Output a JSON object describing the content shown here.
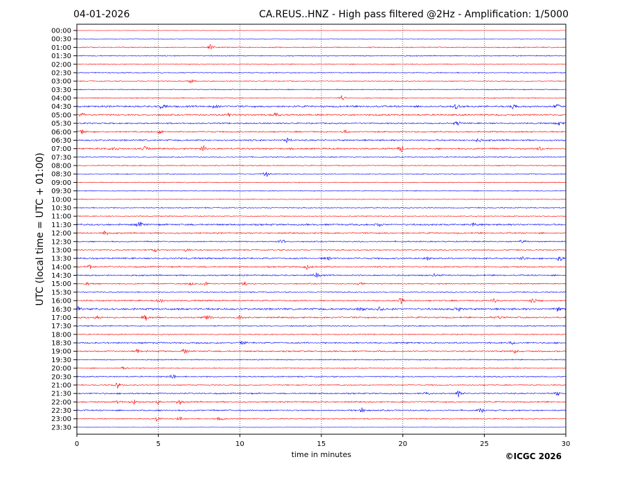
{
  "header": {
    "date": "04-01-2026",
    "title": "CA.REUS..HNZ - High pass filtered @2Hz - Amplification: 1/5000"
  },
  "copyright": "©ICGC 2026",
  "chart_data": {
    "type": "line",
    "title": "CA.REUS..HNZ - High pass filtered @2Hz - Amplification: 1/5000",
    "xlabel": "time in minutes",
    "ylabel": "UTC (local time = UTC + 01:00)",
    "xlim": [
      0,
      30
    ],
    "xticks": [
      "0",
      "5",
      "10",
      "15",
      "20",
      "25",
      "30"
    ],
    "grid": "vertical dotted at 5-minute intervals",
    "row_colors": [
      "#ff0000",
      "#0000ff"
    ],
    "rows": [
      "00:00",
      "00:30",
      "01:00",
      "01:30",
      "02:00",
      "02:30",
      "03:00",
      "03:30",
      "04:00",
      "04:30",
      "05:00",
      "05:30",
      "06:00",
      "06:30",
      "07:00",
      "07:30",
      "08:00",
      "08:30",
      "09:00",
      "09:30",
      "10:00",
      "10:30",
      "11:00",
      "11:30",
      "12:00",
      "12:30",
      "13:00",
      "13:30",
      "14:00",
      "14:30",
      "15:00",
      "15:30",
      "16:00",
      "16:30",
      "17:00",
      "17:30",
      "18:00",
      "18:30",
      "19:00",
      "19:30",
      "20:00",
      "20:30",
      "21:00",
      "21:30",
      "22:00",
      "22:30",
      "23:00",
      "23:30"
    ],
    "noise_level": [
      0.2,
      0.3,
      0.6,
      0.6,
      0.5,
      0.6,
      0.5,
      0.5,
      0.6,
      1.0,
      0.9,
      0.8,
      0.8,
      0.9,
      0.9,
      0.6,
      0.6,
      0.5,
      0.5,
      0.5,
      0.5,
      0.6,
      0.5,
      1.0,
      0.8,
      0.7,
      0.7,
      0.9,
      0.8,
      0.8,
      0.7,
      0.6,
      0.8,
      1.1,
      0.9,
      0.7,
      0.6,
      0.9,
      0.8,
      0.6,
      0.6,
      0.7,
      0.6,
      0.8,
      0.8,
      0.8,
      0.6,
      0.2
    ],
    "events": [
      [
        2,
        8.2,
        4
      ],
      [
        6,
        7.0,
        3
      ],
      [
        8,
        16.3,
        4
      ],
      [
        9,
        5.2,
        5
      ],
      [
        9,
        8.5,
        3
      ],
      [
        9,
        23.3,
        4
      ],
      [
        9,
        26.8,
        4
      ],
      [
        9,
        29.5,
        3
      ],
      [
        10,
        0.3,
        3
      ],
      [
        10,
        9.3,
        3
      ],
      [
        10,
        12.2,
        3
      ],
      [
        11,
        23.3,
        4
      ],
      [
        11,
        29.6,
        3
      ],
      [
        12,
        0.3,
        3
      ],
      [
        12,
        5.1,
        3
      ],
      [
        12,
        16.5,
        3
      ],
      [
        13,
        12.9,
        4
      ],
      [
        13,
        24.6,
        3
      ],
      [
        14,
        2.3,
        4
      ],
      [
        14,
        4.2,
        4
      ],
      [
        14,
        7.8,
        4
      ],
      [
        14,
        19.9,
        4
      ],
      [
        14,
        28.4,
        3
      ],
      [
        17,
        11.6,
        4
      ],
      [
        23,
        3.8,
        5
      ],
      [
        23,
        18.5,
        3
      ],
      [
        23,
        24.3,
        3
      ],
      [
        24,
        1.7,
        4
      ],
      [
        25,
        12.6,
        3
      ],
      [
        25,
        27.3,
        3
      ],
      [
        26,
        4.8,
        3
      ],
      [
        26,
        6.7,
        3
      ],
      [
        27,
        15.4,
        4
      ],
      [
        27,
        21.5,
        3
      ],
      [
        27,
        27.3,
        4
      ],
      [
        27,
        29.6,
        4
      ],
      [
        28,
        0.8,
        3
      ],
      [
        28,
        14.1,
        4
      ],
      [
        29,
        14.7,
        3
      ],
      [
        29,
        21.9,
        3
      ],
      [
        30,
        0.7,
        4
      ],
      [
        30,
        7.0,
        3
      ],
      [
        30,
        7.9,
        4
      ],
      [
        30,
        10.3,
        3
      ],
      [
        30,
        17.4,
        3
      ],
      [
        32,
        5.1,
        5
      ],
      [
        32,
        19.9,
        4
      ],
      [
        32,
        25.6,
        3
      ],
      [
        32,
        28.0,
        4
      ],
      [
        33,
        0.1,
        3
      ],
      [
        33,
        17.4,
        4
      ],
      [
        33,
        18.6,
        3
      ],
      [
        33,
        23.4,
        3
      ],
      [
        33,
        29.5,
        4
      ],
      [
        34,
        1.3,
        3
      ],
      [
        34,
        4.2,
        4
      ],
      [
        34,
        8.0,
        4
      ],
      [
        34,
        10.0,
        3
      ],
      [
        34,
        25.8,
        3
      ],
      [
        37,
        10.2,
        3
      ],
      [
        37,
        26.7,
        3
      ],
      [
        38,
        3.7,
        3
      ],
      [
        38,
        6.6,
        4
      ],
      [
        38,
        26.9,
        3
      ],
      [
        40,
        2.8,
        3
      ],
      [
        41,
        5.9,
        4
      ],
      [
        42,
        2.5,
        4
      ],
      [
        43,
        21.5,
        3
      ],
      [
        43,
        23.4,
        4
      ],
      [
        43,
        29.5,
        4
      ],
      [
        44,
        2.5,
        3
      ],
      [
        44,
        3.5,
        4
      ],
      [
        44,
        5.0,
        3
      ],
      [
        44,
        6.3,
        3
      ],
      [
        45,
        17.5,
        3
      ],
      [
        45,
        24.8,
        3
      ],
      [
        46,
        4.9,
        4
      ],
      [
        46,
        6.3,
        3
      ],
      [
        46,
        8.8,
        3
      ]
    ]
  }
}
